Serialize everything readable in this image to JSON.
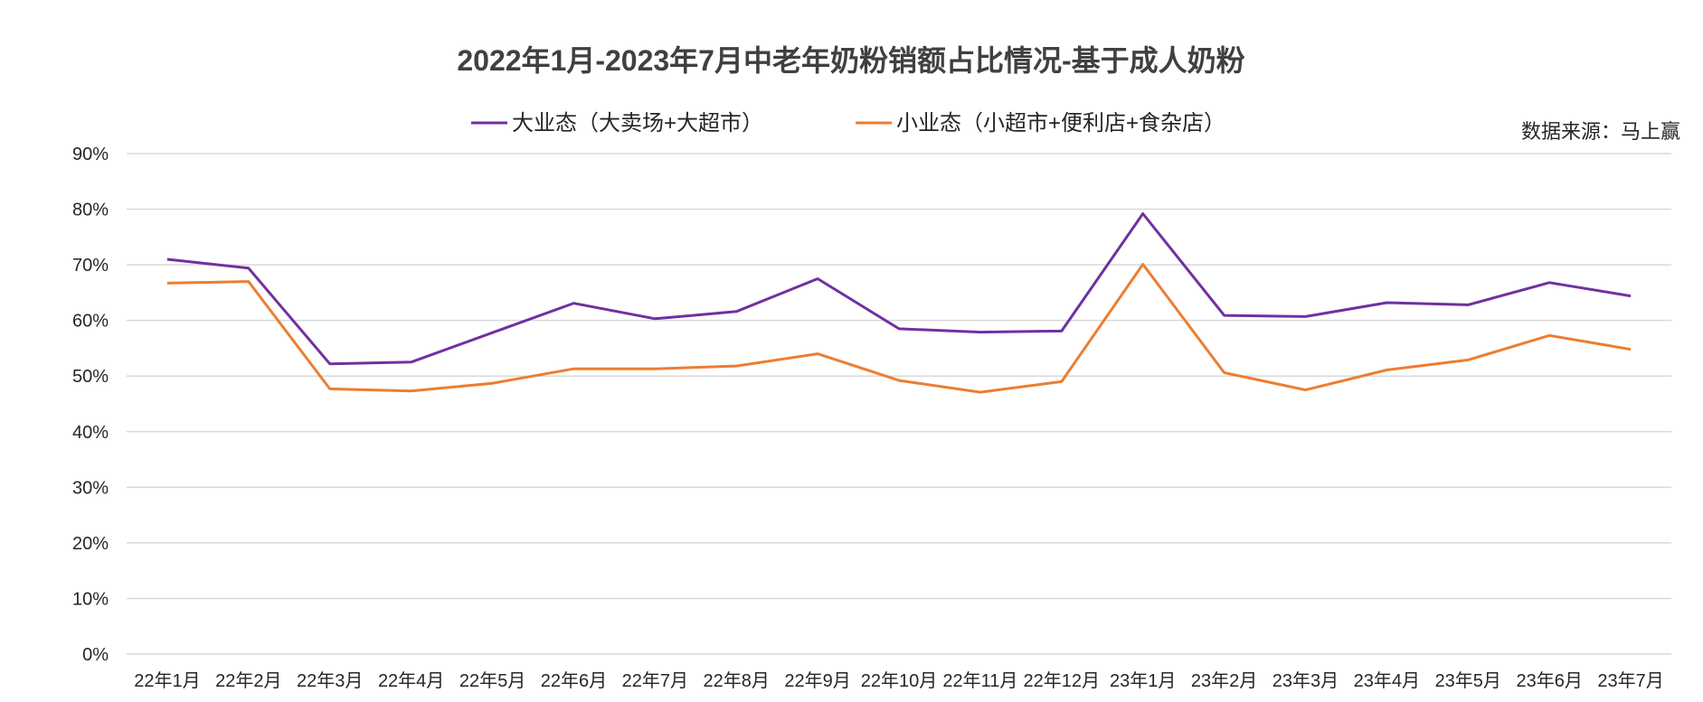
{
  "chart_data": {
    "type": "line",
    "title": "2022年1月-2023年7月中老年奶粉销额占比情况-基于成人奶粉",
    "source_note": "数据来源：马上赢",
    "categories": [
      "22年1月",
      "22年2月",
      "22年3月",
      "22年4月",
      "22年5月",
      "22年6月",
      "22年7月",
      "22年8月",
      "22年9月",
      "22年10月",
      "22年11月",
      "22年12月",
      "23年1月",
      "23年2月",
      "23年3月",
      "23年4月",
      "23年5月",
      "23年6月",
      "23年7月"
    ],
    "series": [
      {
        "name": "大业态（大卖场+大超市）",
        "color": "#7030a0",
        "values": [
          0.71,
          0.694,
          0.522,
          0.525,
          0.578,
          0.631,
          0.603,
          0.616,
          0.675,
          0.585,
          0.579,
          0.581,
          0.792,
          0.609,
          0.607,
          0.632,
          0.628,
          0.668,
          0.644
        ]
      },
      {
        "name": "小业态（小超市+便利店+食杂店）",
        "color": "#ed7d31",
        "values": [
          0.667,
          0.67,
          0.477,
          0.473,
          0.487,
          0.513,
          0.513,
          0.518,
          0.54,
          0.492,
          0.471,
          0.49,
          0.701,
          0.506,
          0.475,
          0.511,
          0.529,
          0.573,
          0.548
        ]
      }
    ],
    "y_ticks": [
      "0%",
      "10%",
      "20%",
      "30%",
      "40%",
      "50%",
      "60%",
      "70%",
      "80%",
      "90%"
    ],
    "ylim": [
      0,
      0.9
    ],
    "grid": true,
    "legend_position": "top"
  }
}
